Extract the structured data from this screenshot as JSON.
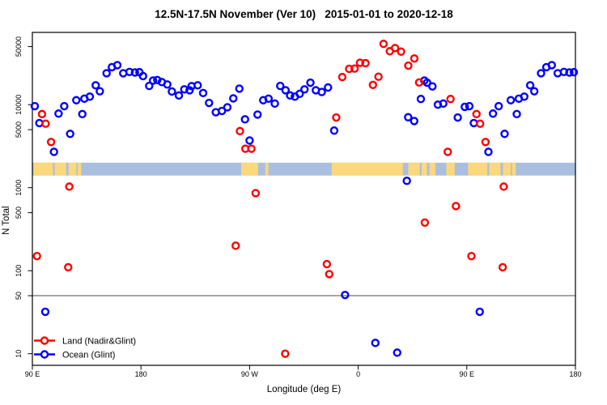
{
  "title": "12.5N-17.5N November (Ver 10)   2015-01-01 to 2020-12-18",
  "legend": {
    "items": [
      {
        "label": "Land (Nadir&Glint)",
        "color": "#ff0000"
      },
      {
        "label": "Ocean (Glint)",
        "color": "#0000ff"
      }
    ]
  },
  "chart_data": {
    "type": "scatter",
    "title": "12.5N-17.5N November (Ver 10)   2015-01-01 to 2020-12-18",
    "xlabel": "Longitude (deg E)",
    "ylabel": "N Total",
    "x_axis": {
      "range_deg": [
        90,
        540
      ],
      "ticks": [
        {
          "pos": 90,
          "label": "90 E"
        },
        {
          "pos": 180,
          "label": "180"
        },
        {
          "pos": 270,
          "label": "90 W"
        },
        {
          "pos": 360,
          "label": "0"
        },
        {
          "pos": 450,
          "label": "90 E"
        },
        {
          "pos": 540,
          "label": "180"
        }
      ]
    },
    "y_axis": {
      "scale": "log",
      "range": [
        8,
        60000
      ],
      "ticks": [
        {
          "value": 50000,
          "label": "50000"
        },
        {
          "value": 10000,
          "label": "10000"
        },
        {
          "value": 5000,
          "label": "5000"
        },
        {
          "value": 1000,
          "label": "1000"
        },
        {
          "value": 500,
          "label": "500"
        },
        {
          "value": 100,
          "label": "100"
        },
        {
          "value": 50,
          "label": "50"
        },
        {
          "value": 10,
          "label": "10"
        }
      ]
    },
    "reference_line": {
      "value": 50,
      "color": "#4d4d4d"
    },
    "map_band": {
      "value_range": [
        1400,
        2000
      ],
      "ocean_color": "#aabfdf",
      "land_color": "#fbd87c",
      "land_segments_deg": [
        [
          91,
          107
        ],
        [
          108.5,
          118
        ],
        [
          120,
          126.5
        ],
        [
          127.5,
          130.5
        ],
        [
          263,
          277
        ],
        [
          283,
          285.5
        ],
        [
          338,
          397
        ],
        [
          401.5,
          411
        ],
        [
          412.5,
          417
        ],
        [
          419,
          424
        ],
        [
          433,
          440
        ],
        [
          451,
          467
        ],
        [
          468.5,
          478
        ],
        [
          480,
          486.5
        ],
        [
          487.5,
          490.5
        ]
      ]
    },
    "series": [
      {
        "name": "Land (Nadir&Glint)",
        "color": "#ff0000",
        "points": [
          [
            98,
            7700
          ],
          [
            101,
            5900
          ],
          [
            105.5,
            3550
          ],
          [
            93.8,
            150
          ],
          [
            119.7,
            110
          ],
          [
            120.6,
            1030
          ],
          [
            258.5,
            200
          ],
          [
            262,
            4800
          ],
          [
            266.5,
            2950
          ],
          [
            271.5,
            2950
          ],
          [
            275,
            860
          ],
          [
            299.5,
            10
          ],
          [
            334,
            120
          ],
          [
            336,
            91
          ],
          [
            341.8,
            7000
          ],
          [
            346.8,
            21500
          ],
          [
            352.5,
            27000
          ],
          [
            357,
            27200
          ],
          [
            361.5,
            32000
          ],
          [
            366,
            31600
          ],
          [
            372.2,
            17300
          ],
          [
            376.8,
            21700
          ],
          [
            381,
            54000
          ],
          [
            386.2,
            44000
          ],
          [
            390.5,
            48000
          ],
          [
            395.5,
            43500
          ],
          [
            401.5,
            29500
          ],
          [
            406.5,
            36000
          ],
          [
            410.5,
            18500
          ],
          [
            415.2,
            380
          ],
          [
            434.2,
            2700
          ],
          [
            436.5,
            11700
          ],
          [
            441,
            600
          ],
          [
            453.8,
            150
          ],
          [
            458,
            7700
          ],
          [
            461,
            5900
          ],
          [
            465.5,
            3550
          ],
          [
            479.7,
            110
          ],
          [
            480.6,
            1030
          ]
        ]
      },
      {
        "name": "Ocean (Glint)",
        "color": "#0000ff",
        "points": [
          [
            92,
            9600
          ],
          [
            95.8,
            6000
          ],
          [
            100.7,
            32
          ],
          [
            107.9,
            2700
          ],
          [
            111.7,
            7800
          ],
          [
            116.4,
            9600
          ],
          [
            121.3,
            4450
          ],
          [
            126.4,
            11300
          ],
          [
            131.4,
            7700
          ],
          [
            133.1,
            11800
          ],
          [
            137.6,
            12500
          ],
          [
            142.5,
            17100
          ],
          [
            145.9,
            14500
          ],
          [
            151.5,
            23900
          ],
          [
            155.9,
            28300
          ],
          [
            160.4,
            29900
          ],
          [
            165.3,
            23900
          ],
          [
            170.5,
            24800
          ],
          [
            175,
            24400
          ],
          [
            178.7,
            24600
          ],
          [
            181.7,
            22100
          ],
          [
            186.8,
            16800
          ],
          [
            190,
            19500
          ],
          [
            193.5,
            19800
          ],
          [
            197.3,
            18700
          ],
          [
            201.8,
            17500
          ],
          [
            205.6,
            14400
          ],
          [
            211.4,
            12900
          ],
          [
            215.9,
            15300
          ],
          [
            220.3,
            14900
          ],
          [
            221.9,
            16700
          ],
          [
            227,
            17100
          ],
          [
            231.5,
            13800
          ],
          [
            236.4,
            10500
          ],
          [
            242,
            8100
          ],
          [
            247.1,
            8400
          ],
          [
            251.6,
            9300
          ],
          [
            256.5,
            11900
          ],
          [
            261.5,
            15600
          ],
          [
            266.2,
            6650
          ],
          [
            270,
            3700
          ],
          [
            276.6,
            7600
          ],
          [
            281.3,
            11300
          ],
          [
            285.7,
            11800
          ],
          [
            290.9,
            10300
          ],
          [
            295.4,
            16800
          ],
          [
            299.8,
            14900
          ],
          [
            303.6,
            12900
          ],
          [
            307.5,
            12500
          ],
          [
            311.5,
            13500
          ],
          [
            315.5,
            15300
          ],
          [
            320.4,
            18400
          ],
          [
            324.9,
            14900
          ],
          [
            329.8,
            14200
          ],
          [
            335,
            16100
          ],
          [
            340.1,
            4870
          ],
          [
            349.1,
            51
          ],
          [
            374.2,
            13.5
          ],
          [
            392.3,
            10.3
          ],
          [
            400.3,
            1210
          ],
          [
            401.4,
            7050
          ],
          [
            406.4,
            6350
          ],
          [
            411.9,
            11700
          ],
          [
            414.8,
            19500
          ],
          [
            417.1,
            18400
          ],
          [
            421.5,
            16600
          ],
          [
            426,
            10000
          ],
          [
            430.5,
            10300
          ],
          [
            442.5,
            7000
          ],
          [
            448.3,
            9400
          ],
          [
            452.1,
            9600
          ],
          [
            455.8,
            6000
          ],
          [
            460.7,
            32
          ],
          [
            467.9,
            2700
          ],
          [
            471.7,
            7800
          ],
          [
            476.4,
            9600
          ],
          [
            481.3,
            4450
          ],
          [
            486.4,
            11300
          ],
          [
            491.4,
            7700
          ],
          [
            493.1,
            11800
          ],
          [
            497.6,
            12500
          ],
          [
            502.5,
            17100
          ],
          [
            505.9,
            14500
          ],
          [
            511.5,
            23900
          ],
          [
            515.9,
            28300
          ],
          [
            520.4,
            29900
          ],
          [
            525.3,
            23900
          ],
          [
            530.5,
            24800
          ],
          [
            535,
            24400
          ],
          [
            538.7,
            24600
          ]
        ]
      }
    ]
  }
}
